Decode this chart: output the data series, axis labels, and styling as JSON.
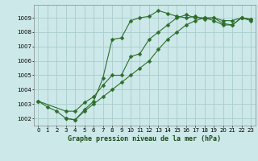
{
  "title": "Graphe pression niveau de la mer (hPa)",
  "bg_color": "#cce8e8",
  "grid_color": "#aacccc",
  "line_color": "#2d6e2d",
  "line1_x": [
    0,
    1,
    2,
    3,
    4,
    5,
    6,
    7,
    8,
    9,
    10,
    11,
    12,
    13,
    14,
    15,
    16,
    17,
    18,
    19,
    20,
    21,
    22,
    23
  ],
  "line1_y": [
    1003.2,
    1002.8,
    1002.5,
    1002.0,
    1001.9,
    1002.6,
    1003.2,
    1004.8,
    1007.5,
    1007.6,
    1008.8,
    1009.0,
    1009.1,
    1009.5,
    1009.3,
    1009.1,
    1009.0,
    1009.1,
    1008.9,
    1009.0,
    1008.6,
    1008.5,
    1009.0,
    1008.9
  ],
  "line2_x": [
    0,
    3,
    4,
    5,
    6,
    7,
    8,
    9,
    10,
    11,
    12,
    13,
    14,
    15,
    16,
    17,
    18,
    19,
    20,
    21,
    22,
    23
  ],
  "line2_y": [
    1003.2,
    1002.5,
    1002.5,
    1003.1,
    1003.5,
    1004.3,
    1005.0,
    1005.0,
    1006.3,
    1006.5,
    1007.5,
    1008.0,
    1008.5,
    1009.0,
    1009.2,
    1009.0,
    1009.0,
    1008.8,
    1008.5,
    1008.5,
    1009.0,
    1008.8
  ],
  "line3_x": [
    3,
    4,
    5,
    6,
    7,
    8,
    9,
    10,
    11,
    12,
    13,
    14,
    15,
    16,
    17,
    18,
    19,
    20,
    21,
    22,
    23
  ],
  "line3_y": [
    1002.0,
    1001.9,
    1002.5,
    1003.0,
    1003.5,
    1004.0,
    1004.5,
    1005.0,
    1005.5,
    1006.0,
    1006.8,
    1007.5,
    1008.0,
    1008.5,
    1008.8,
    1009.0,
    1009.0,
    1008.8,
    1008.8,
    1009.0,
    1008.9
  ],
  "xlim": [
    -0.5,
    23.5
  ],
  "ylim": [
    1001.5,
    1009.9
  ],
  "yticks": [
    1002,
    1003,
    1004,
    1005,
    1006,
    1007,
    1008,
    1009
  ],
  "xticks": [
    0,
    1,
    2,
    3,
    4,
    5,
    6,
    7,
    8,
    9,
    10,
    11,
    12,
    13,
    14,
    15,
    16,
    17,
    18,
    19,
    20,
    21,
    22,
    23
  ],
  "tick_fontsize": 5.0,
  "label_fontsize": 6.0,
  "marker_size": 2.5,
  "line_width": 0.8
}
